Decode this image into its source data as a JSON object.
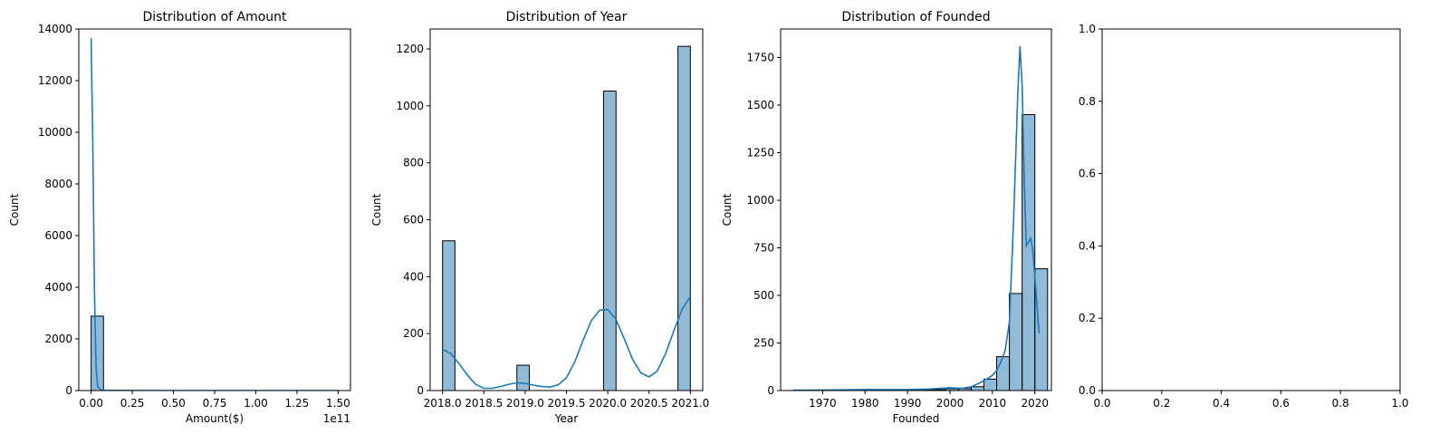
{
  "chart_data": [
    {
      "type": "histogram",
      "title": "Distribution of Amount",
      "xlabel": "Amount($)",
      "ylabel": "Count",
      "x_offset_text": "1e11",
      "xlim": [
        -0.075,
        1.575
      ],
      "ylim": [
        0,
        14000
      ],
      "xticks": [
        0.0,
        0.25,
        0.5,
        0.75,
        1.0,
        1.25,
        1.5
      ],
      "xtick_labels": [
        "0.00",
        "0.25",
        "0.50",
        "0.75",
        "1.00",
        "1.25",
        "1.50"
      ],
      "yticks": [
        0,
        2000,
        4000,
        6000,
        8000,
        10000,
        12000,
        14000
      ],
      "ytick_labels": [
        "0",
        "2000",
        "4000",
        "6000",
        "8000",
        "10000",
        "12000",
        "14000"
      ],
      "bins": [
        {
          "x0": 0.0,
          "x1": 0.075,
          "count": 2880
        },
        {
          "x0": 0.075,
          "x1": 0.15,
          "count": 4
        },
        {
          "x0": 0.15,
          "x1": 0.225,
          "count": 1
        },
        {
          "x0": 1.425,
          "x1": 1.5,
          "count": 1
        }
      ],
      "kde": {
        "x": [
          0.0,
          0.01,
          0.02,
          0.03,
          0.04,
          0.06,
          0.1,
          0.2,
          0.5,
          1.0,
          1.5
        ],
        "y": [
          13650,
          9500,
          3800,
          900,
          150,
          20,
          5,
          2,
          1,
          1,
          1
        ]
      }
    },
    {
      "type": "histogram",
      "title": "Distribution of Year",
      "xlabel": "Year",
      "ylabel": "Count",
      "xlim": [
        2017.85,
        2021.15
      ],
      "ylim": [
        0,
        1270
      ],
      "xticks": [
        2018.0,
        2018.5,
        2019.0,
        2019.5,
        2020.0,
        2020.5,
        2021.0
      ],
      "xtick_labels": [
        "2018.0",
        "2018.5",
        "2019.0",
        "2019.5",
        "2020.0",
        "2020.5",
        "2021.0"
      ],
      "yticks": [
        0,
        200,
        400,
        600,
        800,
        1000,
        1200
      ],
      "ytick_labels": [
        "0",
        "200",
        "400",
        "600",
        "800",
        "1000",
        "1200"
      ],
      "bins": [
        {
          "x0": 2018.0,
          "x1": 2018.15,
          "count": 526
        },
        {
          "x0": 2018.9,
          "x1": 2019.05,
          "count": 89
        },
        {
          "x0": 2019.95,
          "x1": 2020.1,
          "count": 1052
        },
        {
          "x0": 2020.85,
          "x1": 2021.0,
          "count": 1209
        }
      ],
      "kde": {
        "x": [
          2018.0,
          2018.1,
          2018.2,
          2018.3,
          2018.4,
          2018.5,
          2018.6,
          2018.7,
          2018.8,
          2018.9,
          2019.0,
          2019.1,
          2019.2,
          2019.3,
          2019.4,
          2019.5,
          2019.6,
          2019.7,
          2019.8,
          2019.9,
          2020.0,
          2020.1,
          2020.2,
          2020.3,
          2020.4,
          2020.5,
          2020.6,
          2020.7,
          2020.8,
          2020.9,
          2021.0
        ],
        "y": [
          145,
          130,
          95,
          55,
          22,
          8,
          8,
          14,
          22,
          27,
          25,
          19,
          14,
          12,
          20,
          45,
          100,
          175,
          245,
          282,
          285,
          250,
          182,
          110,
          62,
          48,
          68,
          130,
          210,
          285,
          330
        ]
      }
    },
    {
      "type": "histogram",
      "title": "Distribution of Founded",
      "xlabel": "Founded",
      "ylabel": "Count",
      "xlim": [
        1960.1,
        2023.9
      ],
      "ylim": [
        0,
        1900
      ],
      "xticks": [
        1970,
        1980,
        1990,
        2000,
        2010,
        2020
      ],
      "xtick_labels": [
        "1970",
        "1980",
        "1990",
        "2000",
        "2010",
        "2020"
      ],
      "yticks": [
        0,
        250,
        500,
        750,
        1000,
        1250,
        1500,
        1750
      ],
      "ytick_labels": [
        "0",
        "250",
        "500",
        "750",
        "1000",
        "1250",
        "1500",
        "1750"
      ],
      "bins": [
        {
          "x0": 1963,
          "x1": 1966,
          "count": 1
        },
        {
          "x0": 1966,
          "x1": 1969,
          "count": 1
        },
        {
          "x0": 1969,
          "x1": 1972,
          "count": 2
        },
        {
          "x0": 1972,
          "x1": 1975,
          "count": 2
        },
        {
          "x0": 1975,
          "x1": 1978,
          "count": 3
        },
        {
          "x0": 1978,
          "x1": 1981,
          "count": 3
        },
        {
          "x0": 1981,
          "x1": 1984,
          "count": 2
        },
        {
          "x0": 1984,
          "x1": 1987,
          "count": 2
        },
        {
          "x0": 1987,
          "x1": 1990,
          "count": 3
        },
        {
          "x0": 1990,
          "x1": 1993,
          "count": 3
        },
        {
          "x0": 1993,
          "x1": 1996,
          "count": 5
        },
        {
          "x0": 1996,
          "x1": 1999,
          "count": 5
        },
        {
          "x0": 1999,
          "x1": 2002,
          "count": 10
        },
        {
          "x0": 2002,
          "x1": 2005,
          "count": 10
        },
        {
          "x0": 2005,
          "x1": 2008,
          "count": 20
        },
        {
          "x0": 2008,
          "x1": 2011,
          "count": 60
        },
        {
          "x0": 2011,
          "x1": 2014,
          "count": 178
        },
        {
          "x0": 2014,
          "x1": 2017,
          "count": 510
        },
        {
          "x0": 2017,
          "x1": 2020,
          "count": 1450
        },
        {
          "x0": 2020,
          "x1": 2023,
          "count": 640
        }
      ],
      "kde": {
        "x": [
          1963,
          1970,
          1980,
          1990,
          1995,
          2000,
          2003,
          2005,
          2007,
          2009,
          2010,
          2011,
          2012,
          2013,
          2014,
          2015,
          2016,
          2016.5,
          2017,
          2017.5,
          2018,
          2018.5,
          2019,
          2019.5,
          2020,
          2021
        ],
        "y": [
          2,
          3,
          5,
          5,
          8,
          15,
          12,
          20,
          40,
          65,
          80,
          105,
          150,
          210,
          360,
          900,
          1580,
          1810,
          1600,
          1100,
          760,
          780,
          800,
          740,
          600,
          300
        ]
      }
    },
    {
      "type": "empty",
      "title": "",
      "xlabel": "",
      "ylabel": "",
      "xlim": [
        0.0,
        1.0
      ],
      "ylim": [
        0.0,
        1.0
      ],
      "xticks": [
        0.0,
        0.2,
        0.4,
        0.6,
        0.8,
        1.0
      ],
      "xtick_labels": [
        "0.0",
        "0.2",
        "0.4",
        "0.6",
        "0.8",
        "1.0"
      ],
      "yticks": [
        0.0,
        0.2,
        0.4,
        0.6,
        0.8,
        1.0
      ],
      "ytick_labels": [
        "0.0",
        "0.2",
        "0.4",
        "0.6",
        "0.8",
        "1.0"
      ],
      "bins": []
    }
  ]
}
